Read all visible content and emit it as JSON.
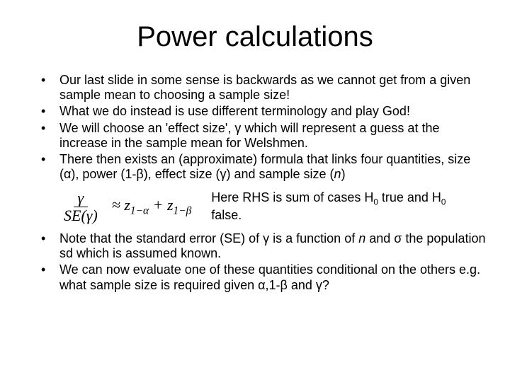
{
  "title": "Power calculations",
  "bullets_top": [
    "Our last slide in some sense is backwards as we cannot get from a given sample mean to choosing a sample size!",
    "What we do instead is use different terminology and play God!",
    "We will choose an 'effect size', γ which will represent a guess at the increase in the sample mean for Welshmen.",
    "There then exists an (approximate) formula that links four quantities, size (α), power (1-β), effect size (γ) and sample size (n)"
  ],
  "formula": {
    "numerator": "γ",
    "denominator_outer": "SE",
    "denominator_inner": "γ",
    "approx": "≈",
    "term1_base": "z",
    "term1_sub": "1−α",
    "plus": "+",
    "term2_base": "z",
    "term2_sub": "1−β"
  },
  "formula_note_prefix": "Here RHS is sum of cases H",
  "formula_note_sub1": "0",
  "formula_note_mid": " true and H",
  "formula_note_sub2": "0",
  "formula_note_suffix": " false.",
  "bullets_bottom": [
    "Note that the standard error (SE) of γ is a function of n and σ the population sd which is assumed known.",
    "We can now evaluate one of these quantities conditional on the others e.g. what sample size is required given α,1-β and γ?"
  ],
  "style": {
    "background": "#ffffff",
    "text_color": "#000000",
    "title_fontsize": 40,
    "body_fontsize": 18,
    "font_family": "Arial"
  }
}
